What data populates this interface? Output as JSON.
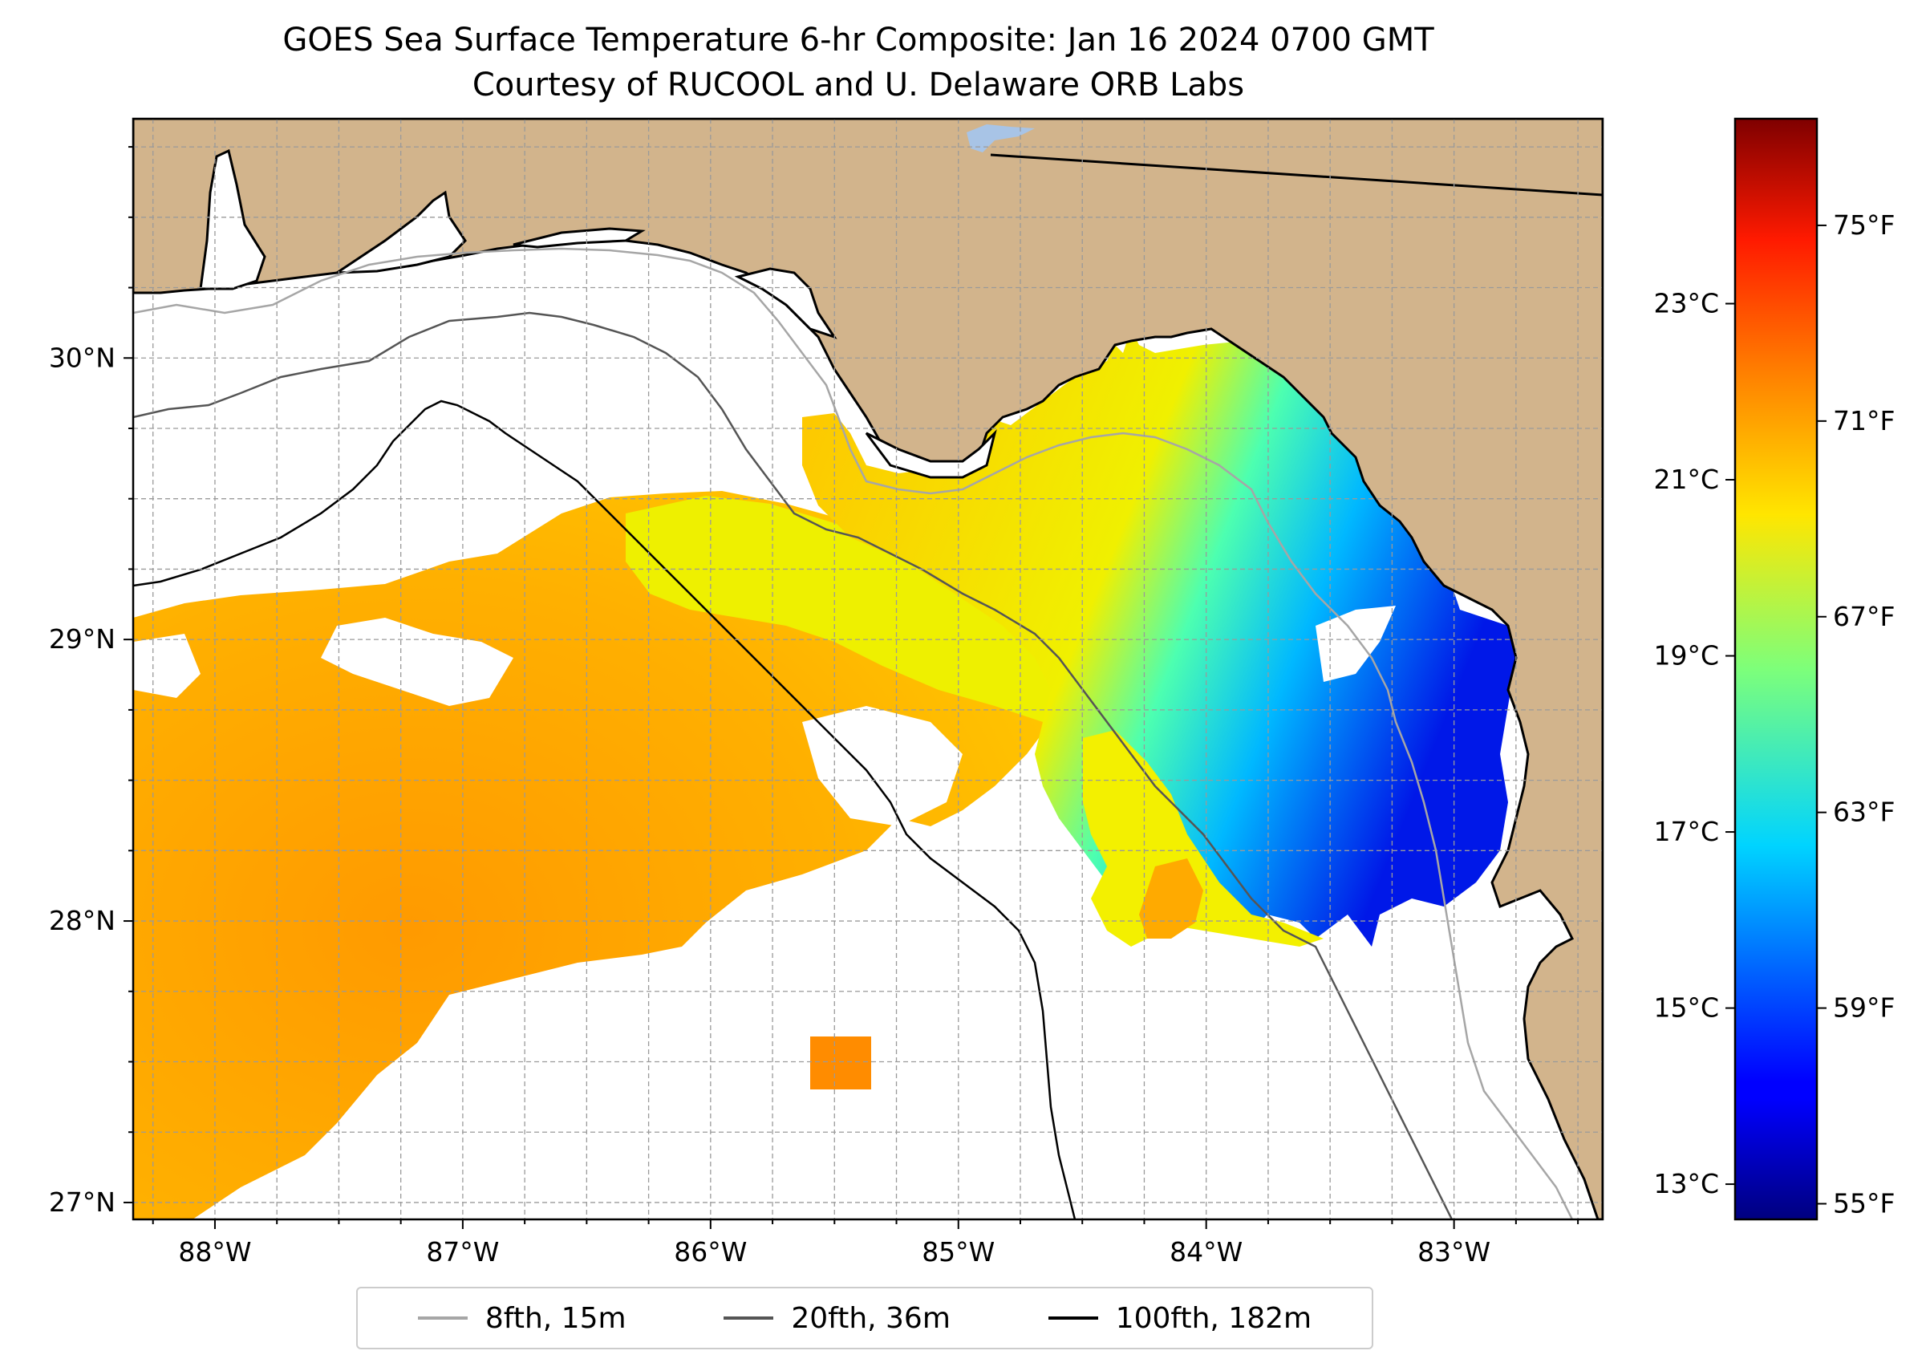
{
  "title": {
    "line1": "GOES Sea Surface Temperature 6-hr Composite: Jan 16 2024 0700 GMT",
    "line2": "Courtesy of RUCOOL and U. Delaware ORB Labs"
  },
  "map": {
    "lon_range": [
      -88.33,
      -82.4
    ],
    "lat_range": [
      26.94,
      30.85
    ],
    "lon_ticks": [
      {
        "value": -88,
        "label": "88°W"
      },
      {
        "value": -87,
        "label": "87°W"
      },
      {
        "value": -86,
        "label": "86°W"
      },
      {
        "value": -85,
        "label": "85°W"
      },
      {
        "value": -84,
        "label": "84°W"
      },
      {
        "value": -83,
        "label": "83°W"
      }
    ],
    "lat_ticks": [
      {
        "value": 27,
        "label": "27°N"
      },
      {
        "value": 28,
        "label": "28°N"
      },
      {
        "value": 29,
        "label": "29°N"
      },
      {
        "value": 30,
        "label": "30°N"
      }
    ],
    "grid": true,
    "land_color": "#d2b48c"
  },
  "colorbar": {
    "celsius_range": [
      12.6,
      25.1
    ],
    "celsius_ticks": [
      {
        "value": 13,
        "label": "13°C"
      },
      {
        "value": 15,
        "label": "15°C"
      },
      {
        "value": 17,
        "label": "17°C"
      },
      {
        "value": 19,
        "label": "19°C"
      },
      {
        "value": 21,
        "label": "21°C"
      },
      {
        "value": 23,
        "label": "23°C"
      }
    ],
    "fahrenheit_ticks": [
      {
        "value": 55,
        "label": "55°F"
      },
      {
        "value": 59,
        "label": "59°F"
      },
      {
        "value": 63,
        "label": "63°F"
      },
      {
        "value": 67,
        "label": "67°F"
      },
      {
        "value": 71,
        "label": "71°F"
      },
      {
        "value": 75,
        "label": "75°F"
      }
    ],
    "colormap": "jet"
  },
  "legend": {
    "placement": "bottom-center",
    "items": [
      {
        "label": "8fth, 15m",
        "color": "#a6a6a6"
      },
      {
        "label": "20fth, 36m",
        "color": "#555555"
      },
      {
        "label": "100fth, 182m",
        "color": "#000000"
      }
    ]
  }
}
